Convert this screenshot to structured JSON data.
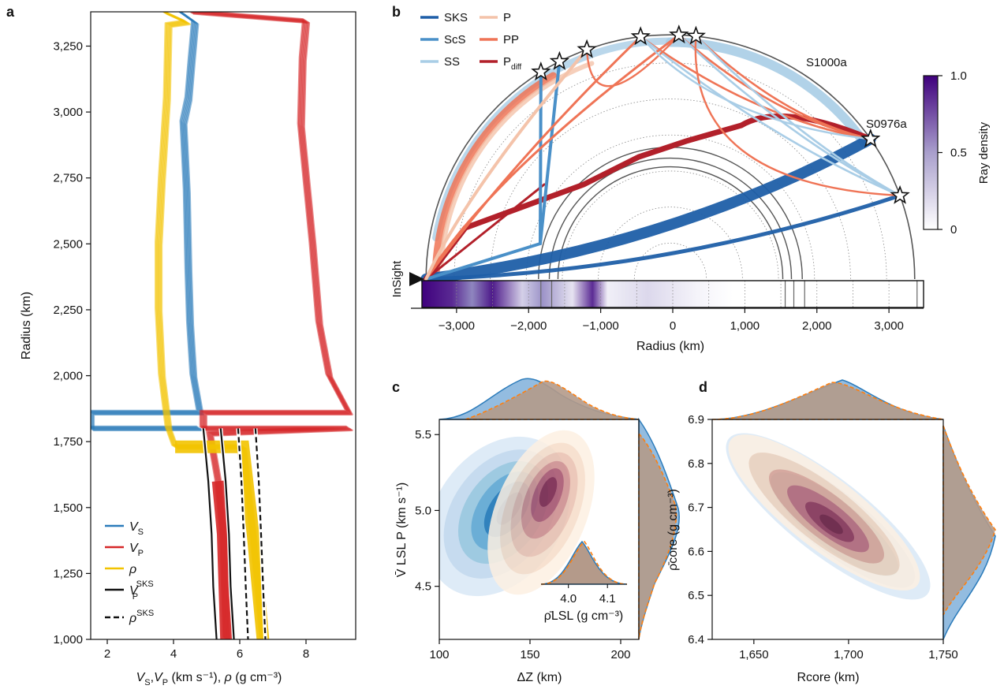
{
  "panel_letters": [
    "a",
    "b",
    "c",
    "d"
  ],
  "colors": {
    "vs": "#2b7bba",
    "vp": "#d62728",
    "rho": "#f2c300",
    "sks": "#1f5fa8",
    "scs": "#4a90c8",
    "ss": "#a9cde6",
    "p": "#f4c3aa",
    "pp": "#ef7456",
    "pdiff": "#b2202a",
    "blue_kde": "#2b6db0",
    "red_kde": "#8c2a4a",
    "orange": "#ff7f0e",
    "density": "#3f007d"
  },
  "chart_data": [
    {
      "id": "a",
      "type": "line",
      "xlabel_parts": [
        "V",
        "S",
        ",",
        "V",
        "P",
        " (km s⁻¹), ",
        "ρ",
        " (g cm⁻³)"
      ],
      "ylabel": "Radius (km)",
      "xlim": [
        1.5,
        9.5
      ],
      "ylim": [
        1000,
        3380
      ],
      "xticks": [
        2,
        4,
        6,
        8
      ],
      "yticks": [
        1000,
        1250,
        1500,
        1750,
        2000,
        2250,
        2500,
        2750,
        3000,
        3250
      ],
      "ytick_labels": [
        "1,000",
        "1,250",
        "1,500",
        "1,750",
        "2,000",
        "2,250",
        "2,500",
        "2,750",
        "3,000",
        "3,250"
      ],
      "series": [
        {
          "name": "VS",
          "legend_main": "V",
          "legend_sub": "S",
          "points": [
            [
              4.2,
              3380
            ],
            [
              4.65,
              3340
            ],
            [
              4.55,
              3200
            ],
            [
              4.45,
              3050
            ],
            [
              4.3,
              2960
            ],
            [
              4.4,
              2700
            ],
            [
              4.45,
              2400
            ],
            [
              4.5,
              2200
            ],
            [
              4.6,
              2000
            ],
            [
              4.8,
              1860
            ],
            [
              1.5,
              1860
            ],
            [
              1.5,
              1800
            ],
            [
              4.8,
              1800
            ]
          ]
        },
        {
          "name": "VP",
          "legend_main": "V",
          "legend_sub": "P",
          "points": [
            [
              4.5,
              3380
            ],
            [
              8.0,
              3345
            ],
            [
              7.9,
              3200
            ],
            [
              7.85,
              2950
            ],
            [
              8.2,
              2500
            ],
            [
              8.4,
              2200
            ],
            [
              8.7,
              2000
            ],
            [
              9.3,
              1860
            ],
            [
              4.9,
              1860
            ],
            [
              4.9,
              1800
            ],
            [
              9.3,
              1800
            ],
            [
              5.1,
              1780
            ],
            [
              5.35,
              1600
            ],
            [
              5.5,
              1400
            ],
            [
              5.55,
              1200
            ],
            [
              5.6,
              1000
            ]
          ]
        },
        {
          "name": "rho",
          "legend_main": "ρ",
          "legend_sub": "",
          "points": [
            [
              3.7,
              3380
            ],
            [
              4.4,
              3340
            ],
            [
              3.85,
              3330
            ],
            [
              3.8,
              3050
            ],
            [
              3.65,
              2750
            ],
            [
              3.55,
              2500
            ],
            [
              3.55,
              2250
            ],
            [
              3.65,
              2000
            ],
            [
              3.85,
              1800
            ],
            [
              4.05,
              1730
            ],
            [
              6.1,
              1730
            ],
            [
              6.2,
              1620
            ],
            [
              6.4,
              1400
            ],
            [
              6.55,
              1200
            ],
            [
              6.7,
              1000
            ]
          ]
        },
        {
          "name": "VP SKS",
          "legend_main": "V",
          "legend_sub": "P",
          "legend_sup": "SKS",
          "points": [
            [
              4.9,
              1800
            ],
            [
              5.05,
              1600
            ],
            [
              5.15,
              1400
            ],
            [
              5.2,
              1200
            ],
            [
              5.3,
              1000
            ]
          ]
        },
        {
          "name": "rho SKS",
          "legend_main": "ρ",
          "legend_sub": "",
          "legend_sup": "SKS",
          "points": [
            [
              5.95,
              1800
            ],
            [
              6.05,
              1600
            ],
            [
              6.12,
              1400
            ],
            [
              6.18,
              1200
            ],
            [
              6.25,
              1000
            ]
          ]
        }
      ]
    },
    {
      "id": "b",
      "type": "ray-path",
      "xlabel": "Radius (km)",
      "station_label": "InSight",
      "xlim": [
        -3480,
        3480
      ],
      "xticks": [
        -3000,
        -2000,
        -1000,
        0,
        1000,
        2000,
        3000
      ],
      "xtick_labels": [
        "−3,000",
        "−2,000",
        "−1,000",
        "0",
        "1,000",
        "2,000",
        "3,000"
      ],
      "legend": [
        {
          "name": "SKS",
          "main": "SKS",
          "sub": ""
        },
        {
          "name": "ScS",
          "main": "ScS",
          "sub": ""
        },
        {
          "name": "SS",
          "main": "SS",
          "sub": ""
        },
        {
          "name": "P",
          "main": "P",
          "sub": ""
        },
        {
          "name": "PP",
          "main": "PP",
          "sub": ""
        },
        {
          "name": "Pdiff",
          "main": "P",
          "sub": "diff"
        }
      ],
      "events": [
        {
          "label": "S1000a",
          "angle_deg": 35
        },
        {
          "label": "S0976a",
          "angle_deg": 20
        }
      ],
      "star_angles_deg": [
        122,
        117,
        110,
        97,
        88,
        84,
        35,
        20
      ],
      "colorbar": {
        "label": "Ray density",
        "ticks": [
          0,
          0.5,
          1.0
        ],
        "tick_labels": [
          "0",
          "0.5",
          "1.0"
        ]
      }
    },
    {
      "id": "c",
      "type": "heatmap",
      "xlabel": "ΔZ (km)",
      "ylabel": "V̄ LSL P (km s⁻¹)",
      "xlim": [
        100,
        210
      ],
      "ylim": [
        4.15,
        5.6
      ],
      "xticks": [
        100,
        150,
        200
      ],
      "yticks": [
        4.5,
        5.0,
        5.5
      ],
      "ytick_labels": [
        "4.5",
        "5.0",
        "5.5"
      ],
      "inset": {
        "xlabel": "ρ̄LSL (g cm⁻³)",
        "xlim": [
          3.93,
          4.15
        ],
        "xticks": [
          4.0,
          4.1
        ],
        "xtick_labels": [
          "4.0",
          "4.1"
        ]
      }
    },
    {
      "id": "d",
      "type": "heatmap",
      "xlabel": "Rcore (km)",
      "ylabel": "ρ̄core (g cm⁻³)",
      "xlim": [
        1628,
        1750
      ],
      "ylim": [
        6.4,
        6.9
      ],
      "xticks": [
        1650,
        1700,
        1750
      ],
      "xtick_labels": [
        "1,650",
        "1,700",
        "1,750"
      ],
      "yticks": [
        6.4,
        6.5,
        6.6,
        6.7,
        6.8,
        6.9
      ],
      "ytick_labels": [
        "6.4",
        "6.5",
        "6.6",
        "6.7",
        "6.8",
        "6.9"
      ]
    }
  ]
}
